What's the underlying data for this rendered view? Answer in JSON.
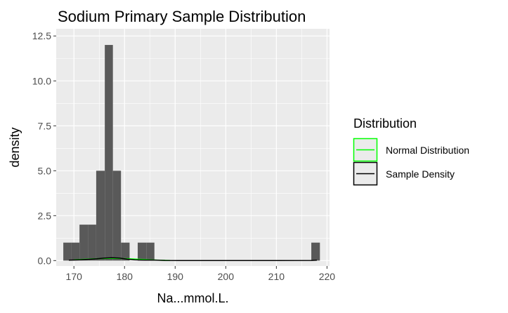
{
  "chart_data": {
    "type": "bar",
    "title": "Sodium Primary Sample Distribution",
    "xlabel": "Na...mmol.L.",
    "ylabel": "density",
    "xlim": [
      166.5,
      220.5
    ],
    "ylim": [
      -0.3,
      12.9
    ],
    "x_ticks": [
      170,
      180,
      190,
      200,
      210,
      220
    ],
    "y_ticks": [
      0,
      2.5,
      5,
      7.5,
      10,
      12.5
    ],
    "x_tick_labels": [
      "170",
      "180",
      "190",
      "200",
      "210",
      "220"
    ],
    "y_tick_labels": [
      "0.0",
      "2.5",
      "5.0",
      "7.5",
      "10.0",
      "12.5"
    ],
    "bins": [
      {
        "x0": 167.9,
        "x1": 169.5,
        "value": 1
      },
      {
        "x0": 169.5,
        "x1": 171.1,
        "value": 1
      },
      {
        "x0": 171.1,
        "x1": 172.8,
        "value": 2
      },
      {
        "x0": 172.8,
        "x1": 174.4,
        "value": 2
      },
      {
        "x0": 174.4,
        "x1": 176.1,
        "value": 5
      },
      {
        "x0": 176.1,
        "x1": 177.7,
        "value": 12
      },
      {
        "x0": 177.7,
        "x1": 179.3,
        "value": 5
      },
      {
        "x0": 179.3,
        "x1": 181.0,
        "value": 1
      },
      {
        "x0": 181.0,
        "x1": 182.6,
        "value": 0
      },
      {
        "x0": 182.6,
        "x1": 184.3,
        "value": 1
      },
      {
        "x0": 184.3,
        "x1": 185.9,
        "value": 1
      },
      {
        "x0": 216.9,
        "x1": 218.6,
        "value": 1
      }
    ],
    "series": [
      {
        "name": "Normal Distribution",
        "color": "#00ff00",
        "x": [
          170,
          172,
          174,
          176,
          177.5,
          179,
          181,
          183,
          185,
          187,
          189
        ],
        "y": [
          0.04,
          0.07,
          0.1,
          0.12,
          0.13,
          0.12,
          0.1,
          0.07,
          0.04,
          0.02,
          0.01
        ]
      },
      {
        "name": "Sample Density",
        "color": "#000000",
        "x": [
          169,
          171,
          173,
          174.5,
          176,
          177.5,
          179,
          180.5,
          182,
          184,
          186,
          188,
          192,
          200,
          210,
          217,
          218
        ],
        "y": [
          0.02,
          0.04,
          0.07,
          0.1,
          0.14,
          0.16,
          0.14,
          0.08,
          0.04,
          0.03,
          0.03,
          0.01,
          0.0,
          0.0,
          0.0,
          0.01,
          0.02
        ]
      }
    ],
    "legend": {
      "title": "Distribution",
      "position": "right",
      "entries": [
        "Normal Distribution",
        "Sample Density"
      ]
    },
    "grid": true,
    "bar_color": "#595959",
    "panel_color": "#ebebeb"
  }
}
